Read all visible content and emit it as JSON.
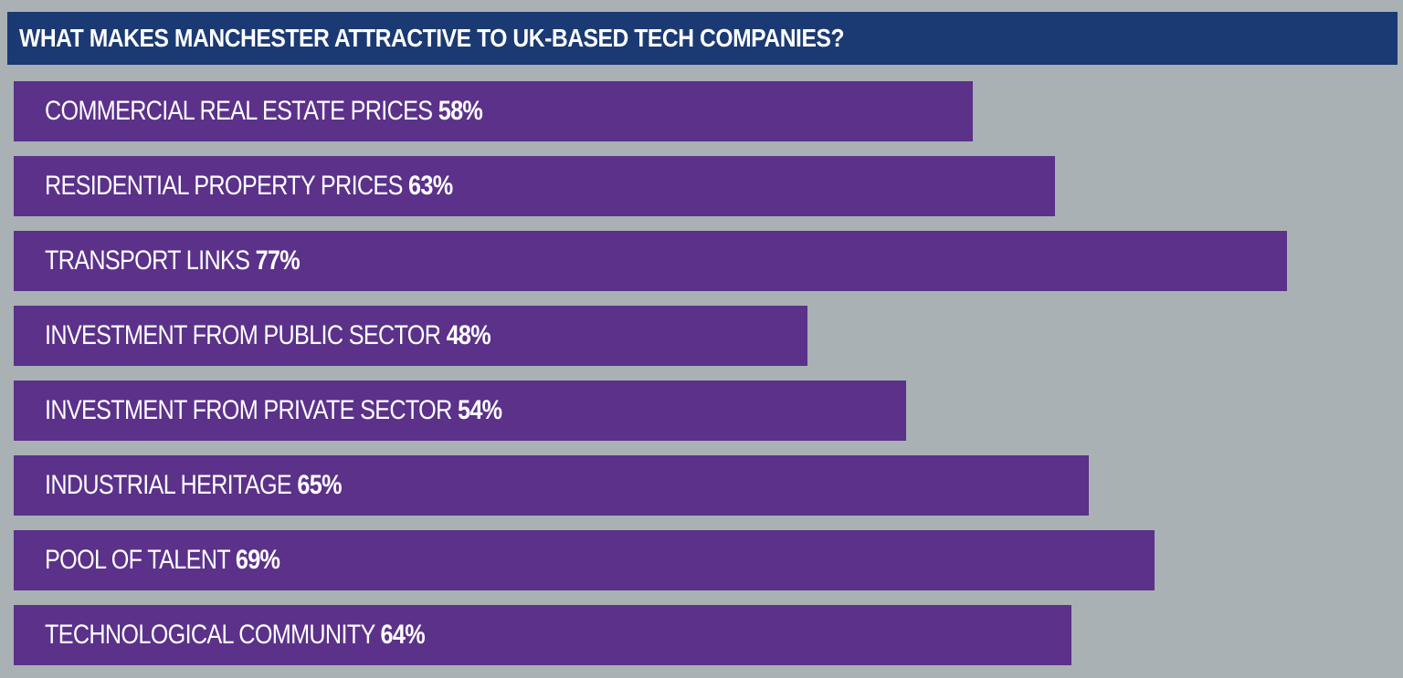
{
  "chart_data": {
    "type": "bar",
    "orientation": "horizontal",
    "title": "WHAT MAKES MANCHESTER ATTRACTIVE TO UK-BASED TECH COMPANIES?",
    "categories": [
      "COMMERCIAL REAL ESTATE PRICES",
      "RESIDENTIAL PROPERTY PRICES",
      "TRANSPORT LINKS",
      "INVESTMENT FROM PUBLIC SECTOR",
      "INVESTMENT FROM PRIVATE SECTOR",
      "INDUSTRIAL HERITAGE",
      "POOL OF TALENT",
      "TECHNOLOGICAL COMMUNITY"
    ],
    "values": [
      58,
      63,
      77,
      48,
      54,
      65,
      69,
      64
    ],
    "value_labels": [
      "58%",
      "63%",
      "77%",
      "48%",
      "54%",
      "65%",
      "69%",
      "64%"
    ],
    "unit": "%",
    "xlim": [
      0,
      100
    ],
    "grid": false,
    "legend": "none",
    "colors": {
      "background": "#a9b1b4",
      "title_bar": "#1b3a73",
      "bar": "#5b318a",
      "text": "#ffffff"
    }
  }
}
